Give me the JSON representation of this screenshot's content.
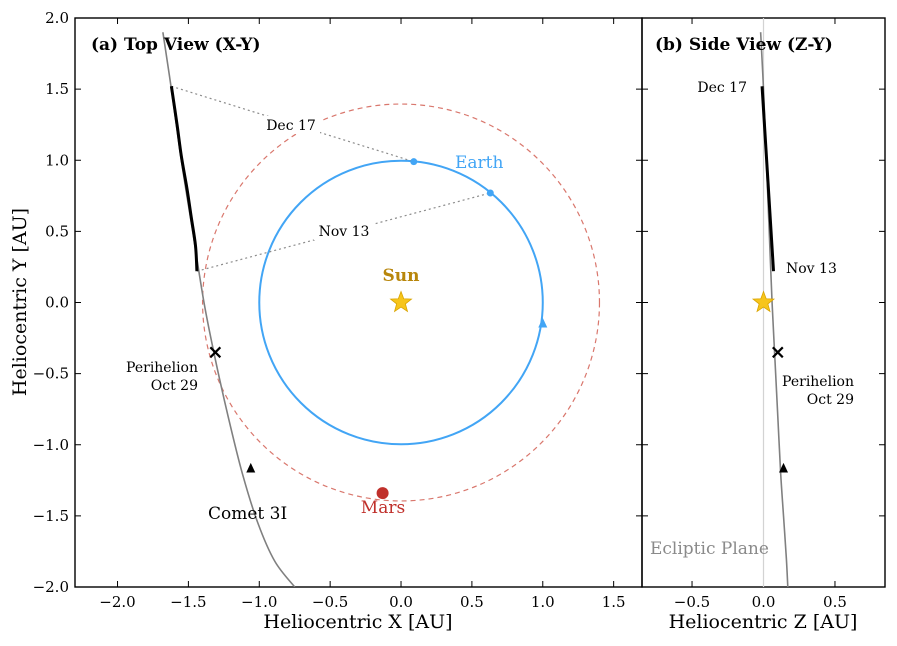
{
  "colors": {
    "earth": "#42a5f5",
    "mars_orbit": "#d9776d",
    "mars": "#c0302b",
    "sun": "#f7c51b",
    "sun_label": "#b8860b",
    "comet_path": "#808080",
    "comet_obs": "#000000",
    "ecliptic_line": "#d3d3d3",
    "ecliptic_label": "#8a8a8a",
    "sightline": "#8c8c8c"
  },
  "chart_data": [
    {
      "type": "line",
      "panel": "a",
      "title": "(a) Top View (X-Y)",
      "xlabel": "Heliocentric X [AU]",
      "ylabel": "Heliocentric Y [AU]",
      "xlim": [
        -2.3,
        1.7
      ],
      "ylim": [
        -2.0,
        2.0
      ],
      "xticks": [
        -2.0,
        -1.5,
        -1.0,
        -0.5,
        0.0,
        0.5,
        1.0,
        1.5
      ],
      "xtick_labels": [
        "−2.0",
        "−1.5",
        "−1.0",
        "−0.5",
        "0.0",
        "0.5",
        "1.0",
        "1.5"
      ],
      "yticks": [
        -2.0,
        -1.5,
        -1.0,
        -0.5,
        0.0,
        0.5,
        1.0,
        1.5,
        2.0
      ],
      "ytick_labels": [
        "−2.0",
        "−1.5",
        "−1.0",
        "−0.5",
        "0.0",
        "0.5",
        "1.0",
        "1.5",
        "2.0"
      ],
      "sun": {
        "x": 0.0,
        "y": 0.0,
        "label": "Sun"
      },
      "earth_orbit": {
        "radius": 1.0,
        "label": "Earth",
        "arrow": {
          "x": 1.0,
          "y": -0.15
        }
      },
      "mars_orbit": {
        "radius": 1.4,
        "label": "Mars",
        "mars_position": {
          "x": -0.13,
          "y": -1.34
        }
      },
      "comet_path": {
        "label": "Comet 3I",
        "x": [
          -1.68,
          -1.62,
          -1.55,
          -1.47,
          -1.39,
          -1.31,
          -1.22,
          -1.12,
          -1.01,
          -0.89,
          -0.75
        ],
        "y": [
          1.9,
          1.5,
          1.0,
          0.5,
          0.0,
          -0.4,
          -0.8,
          -1.2,
          -1.55,
          -1.82,
          -2.0
        ],
        "arrow": {
          "x": -1.06,
          "y": -1.17
        }
      },
      "observed_arc": {
        "x": [
          -1.62,
          -1.58,
          -1.55,
          -1.51,
          -1.48,
          -1.45,
          -1.44
        ],
        "y": [
          1.52,
          1.25,
          1.03,
          0.8,
          0.6,
          0.4,
          0.22
        ]
      },
      "perihelion": {
        "x": -1.31,
        "y": -0.35,
        "label": [
          "Perihelion",
          "Oct 29"
        ]
      },
      "sightlines": [
        {
          "label": "Dec 17",
          "comet": {
            "x": -1.62,
            "y": 1.52
          },
          "earth": {
            "x": 0.09,
            "y": 0.99
          }
        },
        {
          "label": "Nov 13",
          "comet": {
            "x": -1.44,
            "y": 0.22
          },
          "earth": {
            "x": 0.63,
            "y": 0.77
          }
        }
      ]
    },
    {
      "type": "line",
      "panel": "b",
      "title": "(b) Side View (Z-Y)",
      "xlabel": "Heliocentric Z [AU]",
      "xlim": [
        -0.85,
        0.85
      ],
      "ylim": [
        -2.0,
        2.0
      ],
      "xticks": [
        -0.5,
        0.0,
        0.5
      ],
      "xtick_labels": [
        "−0.5",
        "0.0",
        "0.5"
      ],
      "sun": {
        "x": 0.0,
        "y": 0.0
      },
      "ecliptic": {
        "x": 0.0,
        "label": "Ecliptic Plane"
      },
      "comet_path": {
        "z": [
          -0.02,
          0.0,
          0.02,
          0.04,
          0.06,
          0.08,
          0.1,
          0.12,
          0.14,
          0.16,
          0.17
        ],
        "y": [
          1.9,
          1.5,
          1.0,
          0.5,
          0.0,
          -0.4,
          -0.8,
          -1.2,
          -1.5,
          -1.8,
          -2.0
        ],
        "arrow": {
          "x": 0.14,
          "y": -1.17
        }
      },
      "observed_arc": {
        "z": [
          -0.01,
          0.07
        ],
        "y": [
          1.52,
          0.22
        ]
      },
      "perihelion": {
        "x": 0.1,
        "y": -0.35,
        "label": [
          "Perihelion",
          "Oct 29"
        ]
      },
      "date_labels": [
        "Dec 17",
        "Nov 13"
      ]
    }
  ]
}
